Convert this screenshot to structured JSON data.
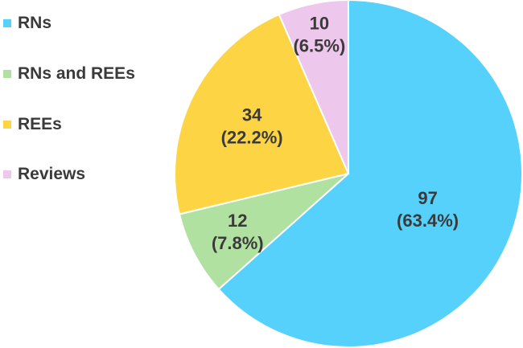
{
  "chart_data": {
    "type": "pie",
    "title": "",
    "legend_position": "left",
    "categories": [
      "RNs",
      "RNs and REEs",
      "REEs",
      "Reviews"
    ],
    "values": [
      97,
      12,
      34,
      10
    ],
    "percent_labels": [
      "(63.4%)",
      "(7.8%)",
      "(22.2%)",
      "(6.5%)"
    ],
    "value_labels": [
      "97",
      "12",
      "34",
      "10"
    ],
    "colors": [
      "#55d1fb",
      "#b1e1a0",
      "#fdd544",
      "#eec8ec"
    ],
    "legend_order": [
      0,
      1,
      2,
      3
    ]
  }
}
